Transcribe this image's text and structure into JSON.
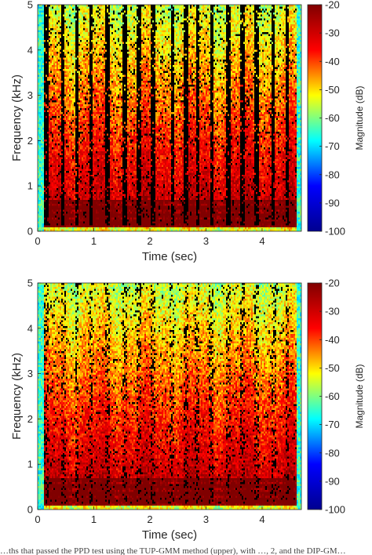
{
  "chart_data": [
    {
      "type": "heatmap",
      "panel": "upper",
      "xlabel": "Time (sec)",
      "ylabel": "Frequency (kHz)",
      "xlim": [
        0,
        4.7
      ],
      "ylim": [
        0,
        5
      ],
      "xticks": [
        0,
        1,
        2,
        3,
        4
      ],
      "yticks": [
        0,
        1,
        2,
        3,
        4,
        5
      ],
      "colorbar": {
        "label": "Magnitude (dB)",
        "range": [
          -100,
          -20
        ],
        "ticks": [
          -20,
          -30,
          -40,
          -50,
          -60,
          -70,
          -80,
          -90,
          -100
        ]
      },
      "colormap": [
        "#00008f",
        "#0000ff",
        "#00ffff",
        "#ffff00",
        "#ff0000",
        "#800000"
      ],
      "masked_color": "#000000",
      "masked_fraction": "high"
    },
    {
      "type": "heatmap",
      "panel": "lower",
      "xlabel": "Time (sec)",
      "ylabel": "Frequency (kHz)",
      "xlim": [
        0,
        4.7
      ],
      "ylim": [
        0,
        5
      ],
      "xticks": [
        0,
        1,
        2,
        3,
        4
      ],
      "yticks": [
        0,
        1,
        2,
        3,
        4,
        5
      ],
      "colorbar": {
        "label": "Magnitude (dB)",
        "range": [
          -100,
          -20
        ],
        "ticks": [
          -20,
          -30,
          -40,
          -50,
          -60,
          -70,
          -80,
          -90,
          -100
        ]
      },
      "colormap": [
        "#00008f",
        "#0000ff",
        "#00ffff",
        "#ffff00",
        "#ff0000",
        "#800000"
      ],
      "masked_color": "#000000",
      "masked_fraction": "low"
    }
  ],
  "caption": "…ths that passed the PPD test using the TUP-GMM method (upper), with …, 2, and the DIP-GM…"
}
